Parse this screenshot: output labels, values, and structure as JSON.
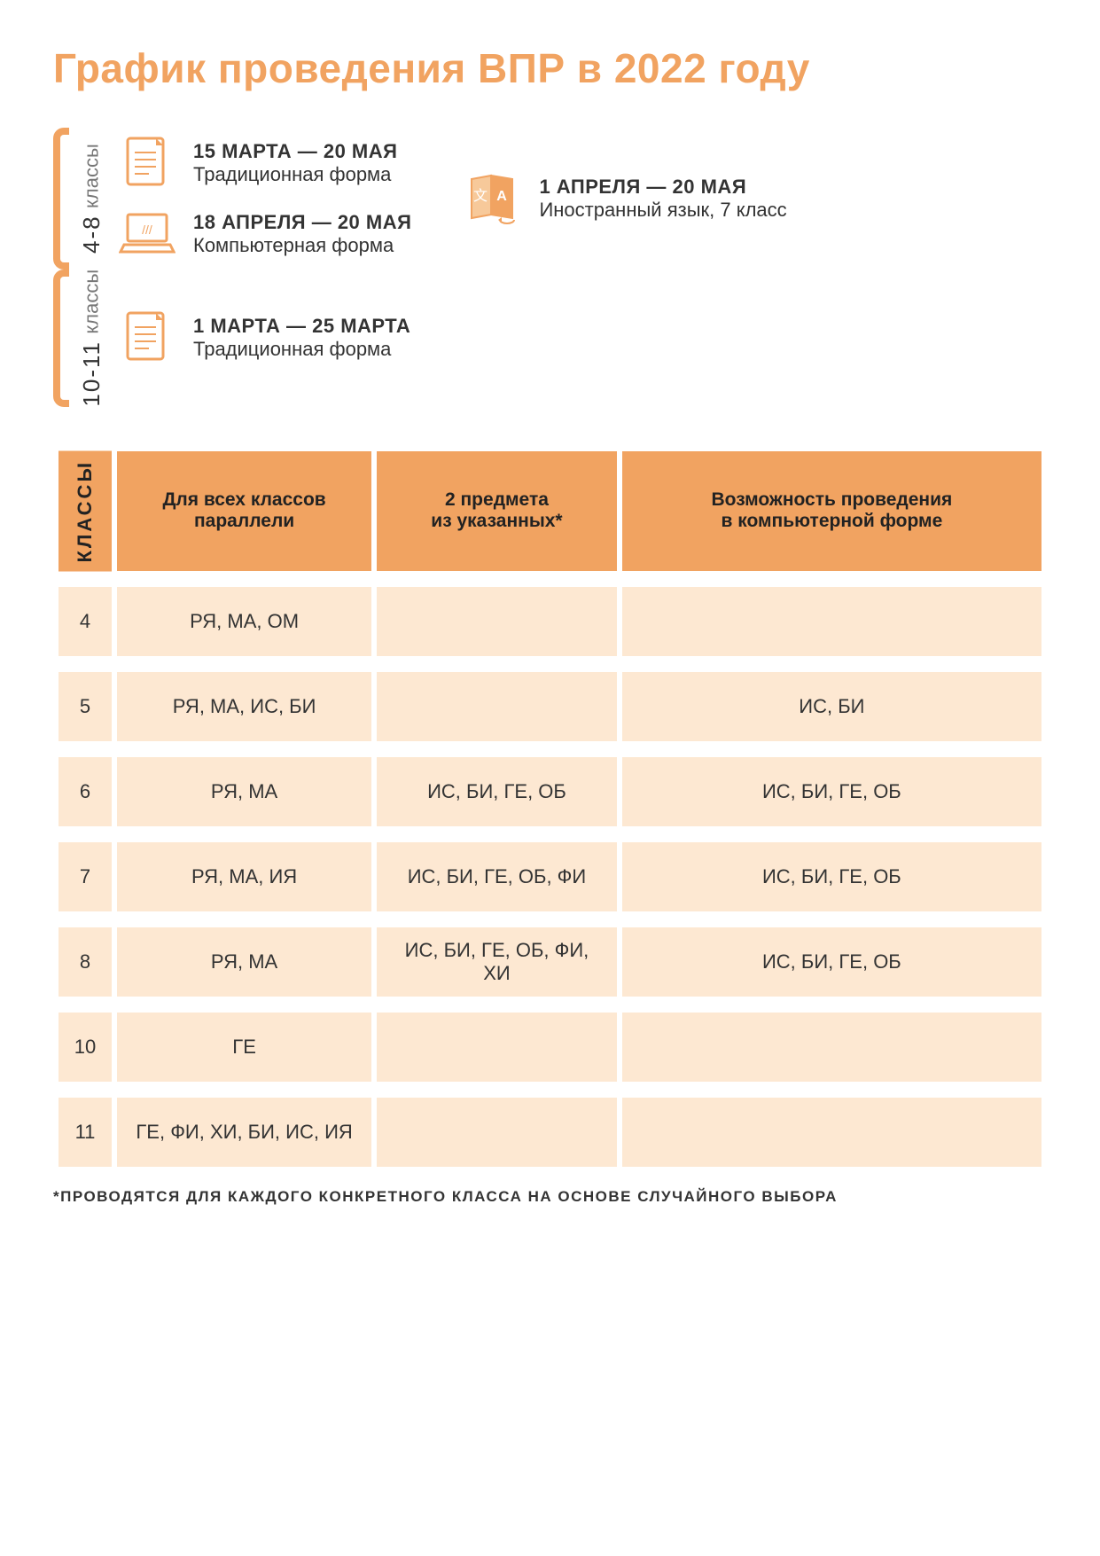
{
  "title": "График проведения ВПР в 2022 году",
  "colors": {
    "accent": "#f1a361",
    "row_bg": "#fde8d2",
    "text": "#333333",
    "background": "#ffffff"
  },
  "schedule": {
    "group1": {
      "label_num": "4-8",
      "label_sub": "классы",
      "items": [
        {
          "icon": "document",
          "dates": "15 МАРТА — 20 МАЯ",
          "desc": "Традиционная форма"
        },
        {
          "icon": "laptop",
          "dates": "18 АПРЕЛЯ — 20 МАЯ",
          "desc": "Компьютерная форма"
        }
      ],
      "side": {
        "icon": "language",
        "dates": "1 АПРЕЛЯ — 20 МАЯ",
        "desc": "Иностранный язык, 7 класс"
      }
    },
    "group2": {
      "label_num": "10-11",
      "label_sub": "классы",
      "items": [
        {
          "icon": "document",
          "dates": "1 МАРТА — 25 МАРТА",
          "desc": "Традиционная форма"
        }
      ]
    }
  },
  "table": {
    "headers": {
      "klassy": "КЛАССЫ",
      "col1": "Для всех классов параллели",
      "col2": "2 предмета из указанных*",
      "col3": "Возможность проведения в компьютерной форме"
    },
    "rows": [
      {
        "grade": "4",
        "c1": "РЯ, МА, ОМ",
        "c2": "",
        "c3": ""
      },
      {
        "grade": "5",
        "c1": "РЯ, МА, ИС, БИ",
        "c2": "",
        "c3": "ИС, БИ"
      },
      {
        "grade": "6",
        "c1": "РЯ, МА",
        "c2": "ИС, БИ, ГЕ, ОБ",
        "c3": "ИС, БИ, ГЕ, ОБ"
      },
      {
        "grade": "7",
        "c1": "РЯ, МА, ИЯ",
        "c2": "ИС, БИ, ГЕ, ОБ, ФИ",
        "c3": "ИС, БИ, ГЕ, ОБ"
      },
      {
        "grade": "8",
        "c1": "РЯ, МА",
        "c2": "ИС, БИ, ГЕ, ОБ, ФИ, ХИ",
        "c3": "ИС, БИ, ГЕ, ОБ"
      },
      {
        "grade": "10",
        "c1": "ГЕ",
        "c2": "",
        "c3": ""
      },
      {
        "grade": "11",
        "c1": "ГЕ, ФИ, ХИ, БИ, ИС, ИЯ",
        "c2": "",
        "c3": ""
      }
    ]
  },
  "footnote": "*ПРОВОДЯТСЯ ДЛЯ КАЖДОГО КОНКРЕТНОГО КЛАССА НА ОСНОВЕ СЛУЧАЙНОГО ВЫБОРА"
}
